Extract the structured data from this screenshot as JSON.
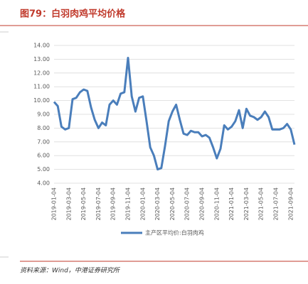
{
  "title": "图79：白羽肉鸡平均价格",
  "source": "资料来源：Wind，中港证券研究所",
  "chart_data": {
    "type": "line",
    "categories": [
      "2019-01-04",
      null,
      null,
      null,
      "2019-03-04",
      null,
      null,
      null,
      "2019-05-04",
      null,
      null,
      null,
      "2019-07-04",
      null,
      null,
      null,
      "2019-09-04",
      null,
      null,
      null,
      "2019-11-04",
      null,
      null,
      null,
      "2020-01-04",
      null,
      null,
      null,
      "2020-03-04",
      null,
      null,
      null,
      "2020-05-04",
      null,
      null,
      null,
      "2020-07-04",
      null,
      null,
      null,
      "2020-09-04",
      null,
      null,
      null,
      "2020-11-04",
      null,
      null,
      null,
      "2021-01-04",
      null,
      null,
      null,
      "2021-03-04",
      null,
      null,
      null,
      "2021-05-04",
      null,
      null,
      null,
      "2021-07-04",
      null,
      null,
      null,
      "2021-09-04",
      null
    ],
    "series": [
      {
        "name": "主产区平均价:白羽肉鸡",
        "color": "#4a7ebb",
        "values": [
          9.9,
          9.6,
          8.1,
          7.9,
          8.0,
          10.1,
          10.2,
          10.6,
          10.8,
          10.7,
          9.5,
          8.6,
          8.0,
          8.4,
          8.2,
          9.7,
          10.0,
          9.7,
          10.5,
          10.6,
          13.1,
          10.3,
          9.2,
          10.2,
          10.3,
          8.5,
          6.6,
          6.0,
          5.0,
          5.1,
          6.7,
          8.5,
          9.2,
          9.7,
          8.6,
          7.6,
          7.5,
          7.8,
          7.7,
          7.7,
          7.4,
          7.5,
          7.3,
          6.6,
          5.8,
          6.5,
          8.2,
          7.9,
          8.1,
          8.5,
          9.3,
          8.0,
          9.4,
          8.9,
          8.8,
          8.6,
          8.8,
          9.2,
          8.8,
          7.9,
          7.9,
          7.9,
          8.0,
          8.3,
          7.9,
          6.8
        ]
      }
    ],
    "ylim": [
      4,
      14
    ],
    "yticks": [
      {
        "value": 4,
        "label": "4.00"
      },
      {
        "value": 5,
        "label": "5.00"
      },
      {
        "value": 6,
        "label": "6.00"
      },
      {
        "value": 7,
        "label": "7.00"
      },
      {
        "value": 8,
        "label": "8.00"
      },
      {
        "value": 9,
        "label": "9.00"
      },
      {
        "value": 10,
        "label": "10.00"
      },
      {
        "value": 11,
        "label": "11.00"
      },
      {
        "value": 12,
        "label": "12.00"
      },
      {
        "value": 13,
        "label": "13.00"
      },
      {
        "value": 14,
        "label": "14.00"
      }
    ],
    "grid": true
  }
}
